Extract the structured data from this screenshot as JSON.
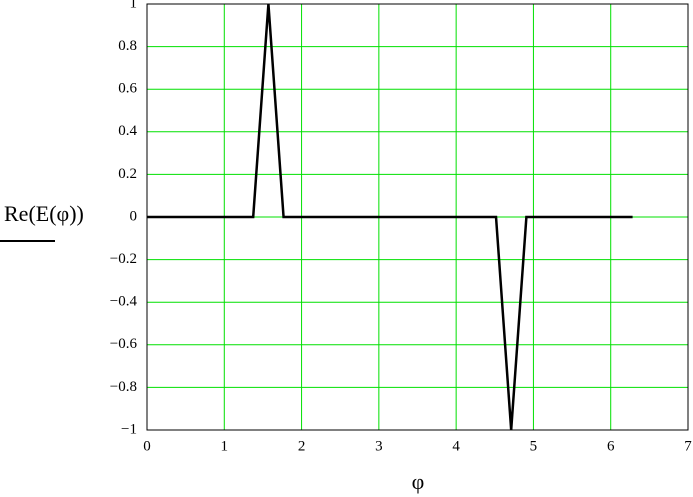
{
  "chart_data": {
    "type": "line",
    "y_label": "Re(E(φ))",
    "x_label": "φ",
    "x": [
      0,
      1.374,
      1.571,
      1.767,
      4.516,
      4.712,
      4.909,
      6.283
    ],
    "series": [
      {
        "color": "#000000",
        "values": [
          0,
          0,
          1,
          0,
          0,
          -1,
          0,
          0
        ]
      }
    ],
    "xlim": [
      0,
      7
    ],
    "xticks": [
      0,
      1,
      2,
      3,
      4,
      5,
      6,
      7
    ],
    "ylim": [
      -1,
      1
    ],
    "yticks": [
      {
        "value": -1,
        "label": "−1"
      },
      {
        "value": -0.8,
        "label": "−0.8"
      },
      {
        "value": -0.6,
        "label": "−0.6"
      },
      {
        "value": -0.4,
        "label": "−0.4"
      },
      {
        "value": -0.2,
        "label": "−0.2"
      },
      0,
      0.2,
      0.4,
      0.6,
      0.8,
      1
    ],
    "grid": true,
    "grid_color": "#00e000"
  }
}
